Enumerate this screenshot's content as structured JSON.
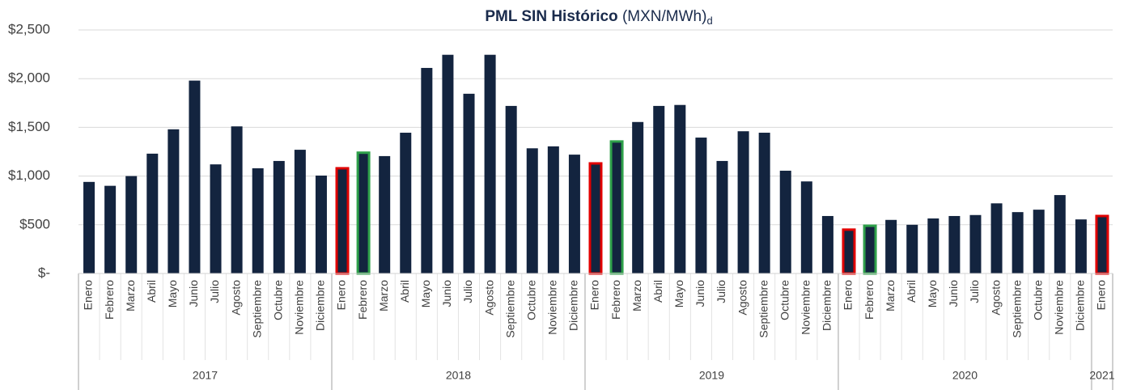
{
  "chart_data": {
    "type": "bar",
    "title": "PML SIN Histórico",
    "title_units": "(MXN/MWh)",
    "title_note": "d",
    "color": "#13243f",
    "grid": true,
    "ylim": [
      0,
      2500
    ],
    "yticks": [
      {
        "value": 0,
        "label": "$-"
      },
      {
        "value": 500,
        "label": "$500"
      },
      {
        "value": 1000,
        "label": "$1,000"
      },
      {
        "value": 1500,
        "label": "$1,500"
      },
      {
        "value": 2000,
        "label": "$2,000"
      },
      {
        "value": 2500,
        "label": "$2,500"
      }
    ],
    "groups": [
      {
        "label": "2017",
        "categories": [
          "Enero",
          "Febrero",
          "Marzo",
          "Abril",
          "Mayo",
          "Junio",
          "Julio",
          "Agosto",
          "Septiembre",
          "Octubre",
          "Noviembre",
          "Diciembre"
        ],
        "values": [
          940,
          900,
          1000,
          1230,
          1480,
          1980,
          1120,
          1510,
          1080,
          1155,
          1270,
          1005
        ],
        "outline_colors": [
          null,
          null,
          null,
          null,
          null,
          null,
          null,
          null,
          null,
          null,
          null,
          null
        ]
      },
      {
        "label": "2018",
        "categories": [
          "Enero",
          "Febrero",
          "Marzo",
          "Abril",
          "Mayo",
          "Junio",
          "Julio",
          "Agosto",
          "Septiembre",
          "Octubre",
          "Noviembre",
          "Diciembre"
        ],
        "values": [
          1080,
          1240,
          1205,
          1445,
          2110,
          2245,
          1845,
          2245,
          1720,
          1285,
          1305,
          1220
        ],
        "outline_colors": [
          "#e00000",
          "#2ea04a",
          null,
          null,
          null,
          null,
          null,
          null,
          null,
          null,
          null,
          null
        ]
      },
      {
        "label": "2019",
        "categories": [
          "Enero",
          "Febrero",
          "Marzo",
          "Abril",
          "Mayo",
          "Junio",
          "Julio",
          "Agosto",
          "Septiembre",
          "Octubre",
          "Noviembre",
          "Diciembre"
        ],
        "values": [
          1130,
          1355,
          1555,
          1720,
          1730,
          1395,
          1155,
          1460,
          1445,
          1055,
          945,
          590
        ],
        "outline_colors": [
          "#e00000",
          "#2ea04a",
          null,
          null,
          null,
          null,
          null,
          null,
          null,
          null,
          null,
          null
        ]
      },
      {
        "label": "2020",
        "categories": [
          "Enero",
          "Febrero",
          "Marzo",
          "Abril",
          "Mayo",
          "Junio",
          "Julio",
          "Agosto",
          "Septiembre",
          "Octubre",
          "Noviembre",
          "Diciembre"
        ],
        "values": [
          450,
          490,
          550,
          500,
          565,
          590,
          600,
          720,
          630,
          655,
          805,
          555
        ],
        "outline_colors": [
          "#e00000",
          "#2ea04a",
          null,
          null,
          null,
          null,
          null,
          null,
          null,
          null,
          null,
          null
        ]
      },
      {
        "label": "2021",
        "categories": [
          "Enero"
        ],
        "values": [
          590
        ],
        "outline_colors": [
          "#e00000"
        ]
      }
    ]
  }
}
